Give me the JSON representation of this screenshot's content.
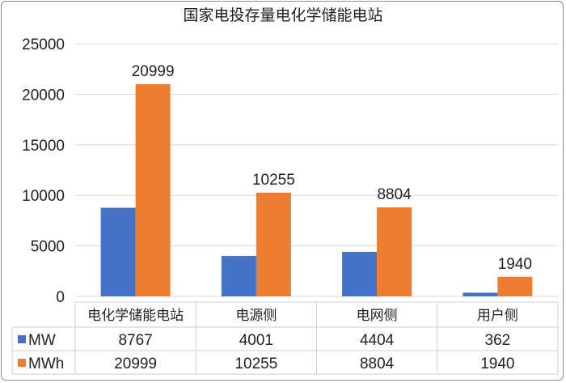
{
  "chart_data": {
    "type": "bar",
    "title": "国家电投存量电化学储能电站",
    "categories": [
      "电化学储能电站",
      "电源侧",
      "电网侧",
      "用户侧"
    ],
    "series": [
      {
        "name": "MW",
        "values": [
          8767,
          4001,
          4404,
          362
        ],
        "color": "#4472C4",
        "show_labels": false
      },
      {
        "name": "MWh",
        "values": [
          20999,
          10255,
          8804,
          1940
        ],
        "color": "#ED7D31",
        "show_labels": true
      }
    ],
    "ylim": [
      0,
      25000
    ],
    "yticks": [
      0,
      5000,
      10000,
      15000,
      20000,
      25000
    ],
    "grid": true,
    "legend": "data-table-below",
    "xlabel": "",
    "ylabel": ""
  }
}
